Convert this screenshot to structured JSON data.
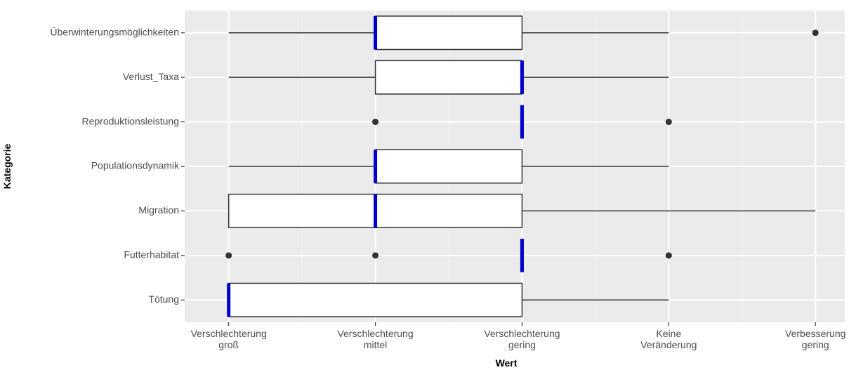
{
  "chart_data": {
    "type": "boxplot",
    "orientation": "horizontal",
    "xlabel": "Wert",
    "ylabel": "Kategorie",
    "x_ticks": [
      {
        "value": 1,
        "lines": [
          "Verschlechterung",
          "groß"
        ]
      },
      {
        "value": 2,
        "lines": [
          "Verschlechterung",
          "mittel"
        ]
      },
      {
        "value": 3,
        "lines": [
          "Verschlechterung",
          "gering"
        ]
      },
      {
        "value": 4,
        "lines": [
          "Keine",
          "Veränderung"
        ]
      },
      {
        "value": 5,
        "lines": [
          "Verbesserung",
          "gering"
        ]
      }
    ],
    "xlim": [
      0.7,
      5.2
    ],
    "grid": true,
    "categories": [
      "Überwinterungsmöglichkeiten",
      "Verlust_Taxa",
      "Reproduktionsleistung",
      "Populationsdynamik",
      "Migration",
      "Futterhabitat",
      "Tötung"
    ],
    "boxes": [
      {
        "category": "Überwinterungsmöglichkeiten",
        "whisker_low": 1,
        "q1": 2,
        "median": 2,
        "q3": 3,
        "whisker_high": 4,
        "outliers": [
          5
        ]
      },
      {
        "category": "Verlust_Taxa",
        "whisker_low": 1,
        "q1": 2,
        "median": 3,
        "q3": 3,
        "whisker_high": 4,
        "outliers": []
      },
      {
        "category": "Reproduktionsleistung",
        "whisker_low": 3,
        "q1": 3,
        "median": 3,
        "q3": 3,
        "whisker_high": 3,
        "outliers": [
          2,
          4
        ]
      },
      {
        "category": "Populationsdynamik",
        "whisker_low": 1,
        "q1": 2,
        "median": 2,
        "q3": 3,
        "whisker_high": 4,
        "outliers": []
      },
      {
        "category": "Migration",
        "whisker_low": 1,
        "q1": 1,
        "median": 2,
        "q3": 3,
        "whisker_high": 5,
        "outliers": []
      },
      {
        "category": "Futterhabitat",
        "whisker_low": 3,
        "q1": 3,
        "median": 3,
        "q3": 3,
        "whisker_high": 3,
        "outliers": [
          1,
          2,
          4
        ]
      },
      {
        "category": "Tötung",
        "whisker_low": 1,
        "q1": 1,
        "median": 1,
        "q3": 3,
        "whisker_high": 4,
        "outliers": []
      }
    ],
    "colors": {
      "panel_background": "#ebebeb",
      "grid_major": "#ffffff",
      "grid_minor": "#f2f2f2",
      "box_fill": "#ffffff",
      "box_outline": "#333333",
      "median": "#0000cc",
      "outlier": "#333333",
      "tick_text": "#4d4d4d",
      "axis_title": "#000000"
    }
  }
}
